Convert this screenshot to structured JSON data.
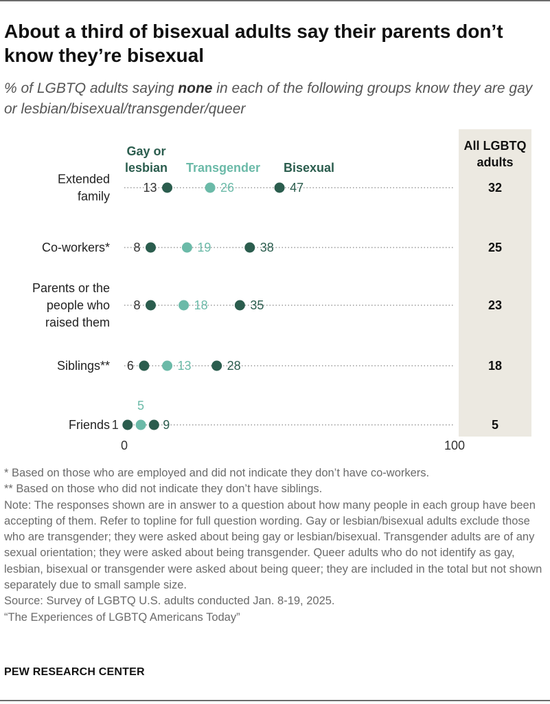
{
  "title": "About a third of bisexual adults say their parents don’t know they’re bisexual",
  "subtitle": {
    "before": "% of LGBTQ adults saying ",
    "emphasis": "none",
    "after": " in each of the following groups know they are gay or lesbian/bisexual/transgender/queer"
  },
  "colors": {
    "dark": "#2b5d4e",
    "light": "#6bbaa8",
    "total_panel": "#ece9e1",
    "dots": "#9a9a9a"
  },
  "chart_data": {
    "type": "dot",
    "xlim": [
      0,
      100
    ],
    "x_tick_labels": [
      "0",
      "100"
    ],
    "categories": [
      [
        "Extended",
        "family"
      ],
      [
        "Co-workers*"
      ],
      [
        "Parents or the",
        "people who",
        "raised them"
      ],
      [
        "Siblings**"
      ],
      [
        "Friends"
      ]
    ],
    "series": [
      {
        "name": "Gay or lesbian",
        "legend_lines": [
          "Gay or",
          "lesbian"
        ],
        "color_key": "dark",
        "values": [
          13,
          8,
          8,
          6,
          1
        ]
      },
      {
        "name": "Transgender",
        "legend_lines": [
          "Transgender"
        ],
        "color_key": "light",
        "values": [
          26,
          19,
          18,
          13,
          5
        ]
      },
      {
        "name": "Bisexual",
        "legend_lines": [
          "Bisexual"
        ],
        "color_key": "dark",
        "values": [
          47,
          38,
          35,
          28,
          9
        ]
      }
    ],
    "total": {
      "header_lines": [
        "All LGBTQ",
        "adults"
      ],
      "values": [
        32,
        25,
        23,
        18,
        5
      ]
    }
  },
  "notes": [
    "* Based on those who are employed and did not indicate they don’t have co-workers.",
    "** Based on those who did not indicate they don’t have siblings.",
    "Note: The responses shown are in answer to a question about how many people in each group have been accepting of them. Refer to topline for full question wording. Gay or lesbian/bisexual adults exclude those who are transgender; they were asked about being gay or lesbian/bisexual. Transgender adults are of any sexual orientation; they were asked about being transgender. Queer adults who do not identify as gay, lesbian, bisexual or transgender were asked about being queer; they are included in the total but not shown separately due to small sample size.",
    "Source: Survey of LGBTQ U.S. adults conducted Jan. 8-19, 2025.",
    "“The Experiences of LGBTQ Americans Today”"
  ],
  "brand": "PEW RESEARCH CENTER"
}
